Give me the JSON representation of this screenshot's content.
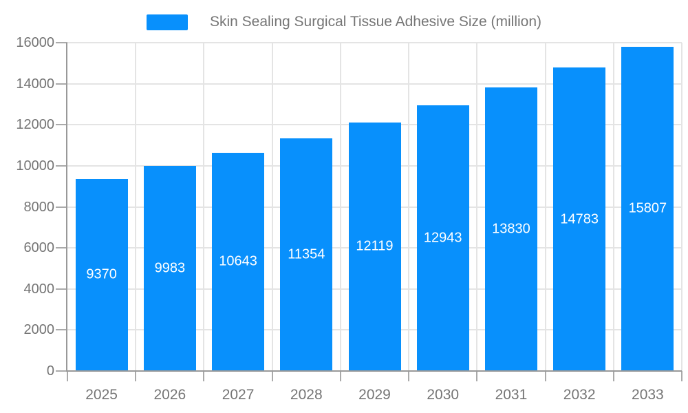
{
  "legend": {
    "label": "Skin Sealing Surgical Tissue Adhesive Size (million)"
  },
  "chart_data": {
    "type": "bar",
    "title": "Skin Sealing Surgical Tissue Adhesive Size (million)",
    "series_name": "Skin Sealing Surgical Tissue Adhesive Size (million)",
    "categories": [
      "2025",
      "2026",
      "2027",
      "2028",
      "2029",
      "2030",
      "2031",
      "2032",
      "2033"
    ],
    "values": [
      9370,
      9983,
      10643,
      11354,
      12119,
      12943,
      13830,
      14783,
      15807
    ],
    "xlabel": "",
    "ylabel": "",
    "ylim": [
      0,
      16000
    ],
    "y_ticks": [
      0,
      2000,
      4000,
      6000,
      8000,
      10000,
      12000,
      14000,
      16000
    ],
    "grid": true,
    "legend_position": "top-center",
    "value_labels": "inside-center",
    "colors": {
      "bar": "#0890fc",
      "value_label": "#ffffff",
      "axis_line": "#999999",
      "tick": "#aaaaaa",
      "grid_line": "#e4e4e4",
      "axis_text": "#757575",
      "background": "#ffffff"
    }
  }
}
